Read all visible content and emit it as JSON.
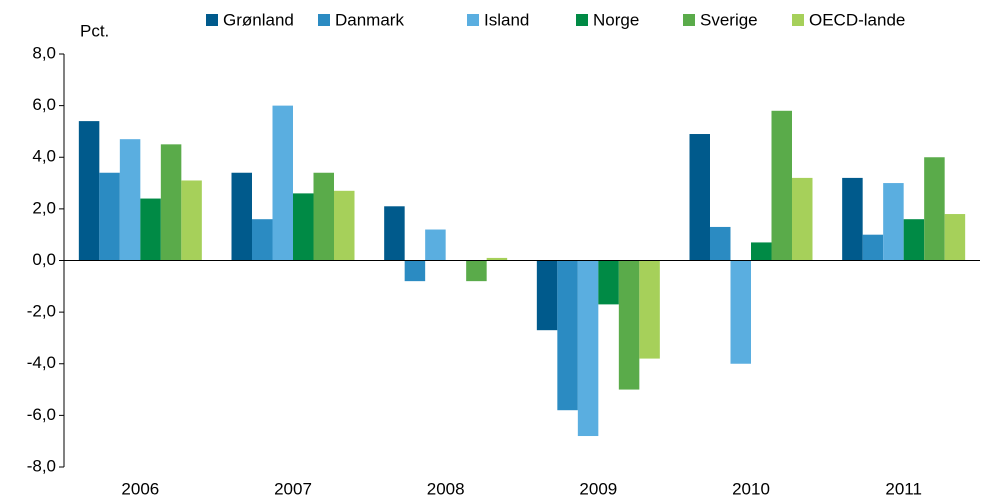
{
  "chart_data": {
    "type": "bar",
    "y_label": "Pct.",
    "categories": [
      "2006",
      "2007",
      "2008",
      "2009",
      "2010",
      "2011"
    ],
    "series": [
      {
        "name": "Grønland",
        "color": "#005a8c",
        "values": [
          5.4,
          3.4,
          2.1,
          -2.7,
          4.9,
          3.2
        ]
      },
      {
        "name": "Danmark",
        "color": "#2b8bc2",
        "values": [
          3.4,
          1.6,
          -0.8,
          -5.8,
          1.3,
          1.0
        ]
      },
      {
        "name": "Island",
        "color": "#5aaee0",
        "values": [
          4.7,
          6.0,
          1.2,
          -6.8,
          -4.0,
          3.0
        ]
      },
      {
        "name": "Norge",
        "color": "#008a45",
        "values": [
          2.4,
          2.6,
          0.0,
          -1.7,
          0.7,
          1.6
        ]
      },
      {
        "name": "Sverige",
        "color": "#5aab4a",
        "values": [
          4.5,
          3.4,
          -0.8,
          -5.0,
          5.8,
          4.0
        ]
      },
      {
        "name": "OECD-lande",
        "color": "#a6d05a",
        "values": [
          3.1,
          2.7,
          0.1,
          -3.8,
          3.2,
          1.8
        ]
      }
    ],
    "ylim": [
      -8,
      8
    ],
    "yticks": [
      {
        "value": -8,
        "label": "-8,0"
      },
      {
        "value": -6,
        "label": "-6,0"
      },
      {
        "value": -4,
        "label": "-4,0"
      },
      {
        "value": -2,
        "label": "-2,0"
      },
      {
        "value": 0,
        "label": "0,0"
      },
      {
        "value": 2,
        "label": "2,0"
      },
      {
        "value": 4,
        "label": "4,0"
      },
      {
        "value": 6,
        "label": "6,0"
      },
      {
        "value": 8,
        "label": "8,0"
      }
    ]
  }
}
